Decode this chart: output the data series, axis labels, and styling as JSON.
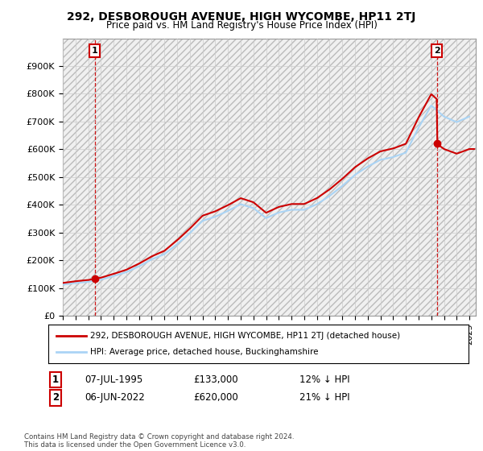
{
  "title": "292, DESBOROUGH AVENUE, HIGH WYCOMBE, HP11 2TJ",
  "subtitle": "Price paid vs. HM Land Registry's House Price Index (HPI)",
  "xlim_start": 1993.0,
  "xlim_end": 2025.5,
  "ylim": [
    0,
    1000000
  ],
  "yticks": [
    0,
    100000,
    200000,
    300000,
    400000,
    500000,
    600000,
    700000,
    800000,
    900000
  ],
  "ytick_labels": [
    "£0",
    "£100K",
    "£200K",
    "£300K",
    "£400K",
    "£500K",
    "£600K",
    "£700K",
    "£800K",
    "£900K"
  ],
  "hpi_color": "#aad4f5",
  "price_color": "#cc0000",
  "dashed_color": "#cc0000",
  "marker_color": "#cc0000",
  "transaction1_x": 1995.52,
  "transaction1_price": 133000,
  "transaction2_x": 2022.43,
  "transaction2_price": 620000,
  "legend_property": "292, DESBOROUGH AVENUE, HIGH WYCOMBE, HP11 2TJ (detached house)",
  "legend_hpi": "HPI: Average price, detached house, Buckinghamshire",
  "footer": "Contains HM Land Registry data © Crown copyright and database right 2024.\nThis data is licensed under the Open Government Licence v3.0.",
  "table_row1_label": "1",
  "table_row1_date": "07-JUL-1995",
  "table_row1_price": "£133,000",
  "table_row1_note": "12% ↓ HPI",
  "table_row2_label": "2",
  "table_row2_date": "06-JUN-2022",
  "table_row2_price": "£620,000",
  "table_row2_note": "21% ↓ HPI",
  "hpi_years": [
    1993,
    1994,
    1995,
    1996,
    1997,
    1998,
    1999,
    2000,
    2001,
    2002,
    2003,
    2004,
    2005,
    2006,
    2007,
    2008,
    2009,
    2010,
    2011,
    2012,
    2013,
    2014,
    2015,
    2016,
    2017,
    2018,
    2019,
    2020,
    2021,
    2022,
    2023,
    2024,
    2025
  ],
  "hpi_values": [
    112000,
    118000,
    122000,
    130000,
    143000,
    157000,
    178000,
    203000,
    222000,
    258000,
    298000,
    342000,
    357000,
    378000,
    402000,
    388000,
    352000,
    372000,
    382000,
    382000,
    402000,
    432000,
    468000,
    508000,
    538000,
    562000,
    572000,
    588000,
    678000,
    758000,
    718000,
    698000,
    718000
  ]
}
